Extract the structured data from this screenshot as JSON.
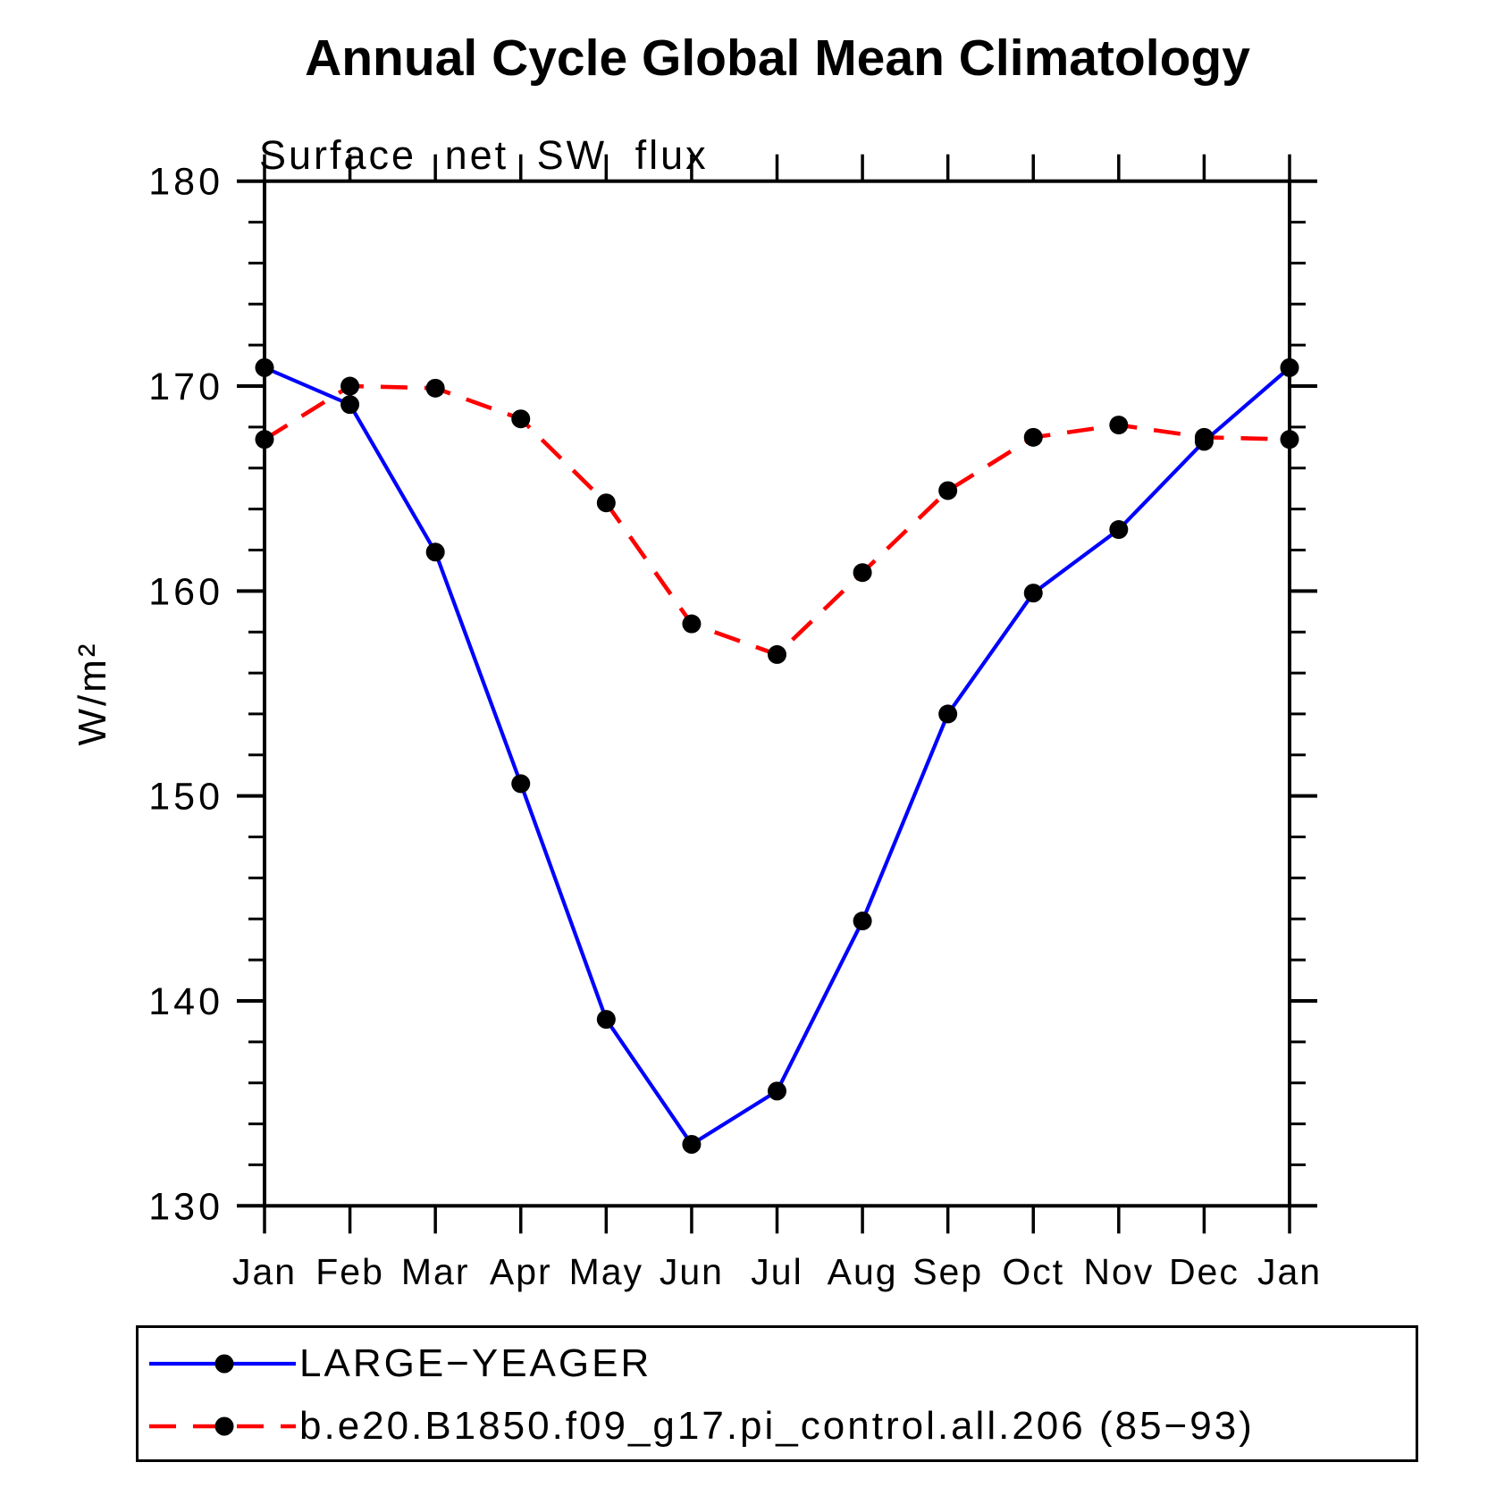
{
  "title": "Annual Cycle Global Mean Climatology",
  "chart_data": {
    "type": "line",
    "title": "Annual Cycle Global Mean Climatology",
    "subtitle": "Surface net SW flux",
    "xlabel": "",
    "ylabel": "W/m²",
    "categories": [
      "Jan",
      "Feb",
      "Mar",
      "Apr",
      "May",
      "Jun",
      "Jul",
      "Aug",
      "Sep",
      "Oct",
      "Nov",
      "Dec",
      "Jan"
    ],
    "series": [
      {
        "name": "LARGE−YEAGER",
        "color": "#0000ff",
        "style": "solid",
        "marker": "circle",
        "marker_color": "#000000",
        "values": [
          170.9,
          169.1,
          161.9,
          150.6,
          139.1,
          133.0,
          135.6,
          143.9,
          154.0,
          159.9,
          163.0,
          167.3,
          170.9
        ]
      },
      {
        "name": "b.e20.B1850.f09_g17.pi_control.all.206 (85−93)",
        "color": "#ff0000",
        "style": "dashed",
        "marker": "circle",
        "marker_color": "#000000",
        "values": [
          167.4,
          170.0,
          169.9,
          168.4,
          164.3,
          158.4,
          156.9,
          160.9,
          164.9,
          167.5,
          168.1,
          167.5,
          167.4
        ]
      }
    ],
    "ylim": [
      130,
      180
    ],
    "ytick_major": 10,
    "ytick_minor": 2,
    "grid": false,
    "legend_position": "bottom",
    "axis_color": "#000000",
    "text_color": "#000000"
  }
}
